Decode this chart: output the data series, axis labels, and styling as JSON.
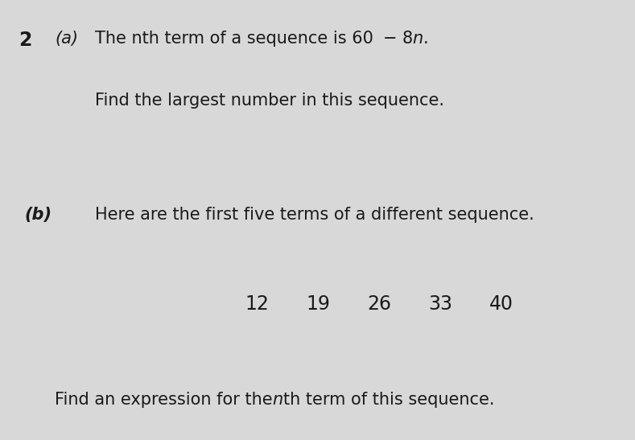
{
  "background_color": "#d8d8d8",
  "text_color": "#1a1a1a",
  "question_number": "2",
  "part_a_label": "(a)",
  "part_a_line1": "The nth term of a sequence is 60− 8η.",
  "part_a_line1_plain": "The nth term of a sequence is 60− 8n.",
  "part_a_line2": "Find the largest number in this sequence.",
  "part_b_label": "(b)",
  "part_b_line1": "Here are the first five terms of a different sequence.",
  "sequence_numbers": [
    "12",
    "19",
    "26",
    "33",
    "40"
  ],
  "part_b_line2_prefix": "Find an expression for the ",
  "part_b_line2_italic": "n",
  "part_b_line2_suffix": "th term of this sequence.",
  "font_size_main": 15,
  "font_size_seq": 17,
  "font_size_question_num": 17
}
